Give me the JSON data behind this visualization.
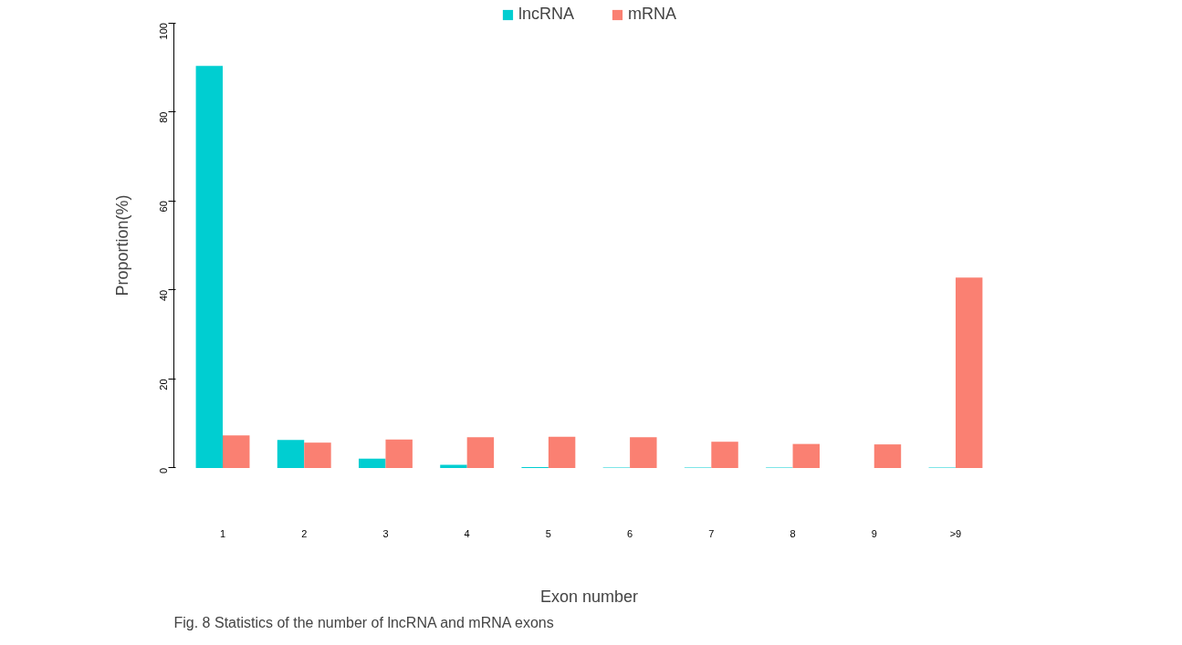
{
  "chart_data": {
    "type": "bar",
    "categories": [
      "1",
      "2",
      "3",
      "4",
      "5",
      "6",
      "7",
      "8",
      "9",
      ">9"
    ],
    "series": [
      {
        "name": "lncRNA",
        "color": "#00ced1",
        "values": [
          90.3,
          6.3,
          2.1,
          0.7,
          0.2,
          0.1,
          0.1,
          0.1,
          0,
          0.1
        ]
      },
      {
        "name": "mRNA",
        "color": "#fa8072",
        "values": [
          7.3,
          5.7,
          6.4,
          6.9,
          7.0,
          6.9,
          5.9,
          5.4,
          5.3,
          42.8
        ]
      }
    ],
    "xlabel": "Exon number",
    "ylabel": "Proportion(%)",
    "ylim": [
      0,
      100
    ],
    "yticks": [
      0,
      20,
      40,
      60,
      80,
      100
    ],
    "grid": false,
    "legend": "top",
    "annotations": [
      "Fig. 8  Statistics of the number of lncRNA and mRNA exons"
    ]
  }
}
